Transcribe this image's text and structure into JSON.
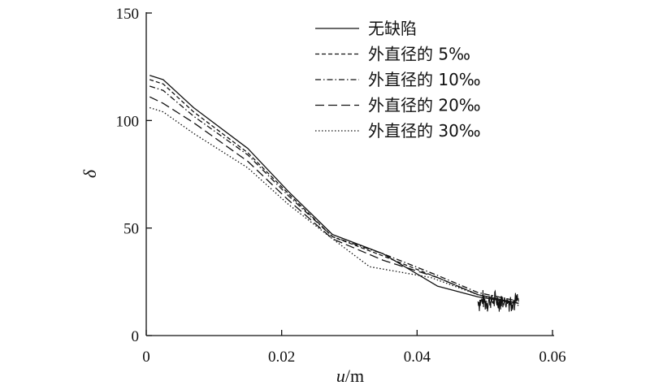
{
  "chart_data": {
    "type": "line",
    "title": "",
    "xlabel_italic": "u",
    "xlabel_unit": "/m",
    "ylabel": "δ",
    "xlim": [
      0,
      0.06
    ],
    "ylim": [
      0,
      150
    ],
    "xticks": [
      0,
      0.02,
      0.04,
      0.06
    ],
    "xtick_labels": [
      "0",
      "0.02",
      "0.04",
      "0.06"
    ],
    "yticks": [
      0,
      50,
      100,
      150
    ],
    "ytick_labels": [
      "0",
      "50",
      "100",
      "150"
    ],
    "grid": false,
    "legend_position": "top-right",
    "series": [
      {
        "name": "无缺陷",
        "dash": "solid",
        "x": [
          0.0005,
          0.0025,
          0.007,
          0.015,
          0.021,
          0.0275,
          0.035,
          0.043,
          0.049,
          0.055
        ],
        "y": [
          121,
          119,
          106,
          87,
          67,
          47,
          38,
          23,
          18,
          15
        ]
      },
      {
        "name": "外直径的 5‰",
        "dash": "dashed-fine",
        "x": [
          0.0005,
          0.0025,
          0.007,
          0.015,
          0.021,
          0.0275,
          0.035,
          0.043,
          0.049,
          0.055
        ],
        "y": [
          119,
          117,
          104,
          85,
          66,
          46,
          37,
          27,
          19,
          15
        ]
      },
      {
        "name": "外直径的 10‰",
        "dash": "dash-dot",
        "x": [
          0.0005,
          0.0025,
          0.007,
          0.015,
          0.021,
          0.0275,
          0.035,
          0.043,
          0.049,
          0.055
        ],
        "y": [
          116,
          114,
          102,
          84,
          65,
          46,
          38,
          28,
          20,
          16
        ]
      },
      {
        "name": "外直径的 20‰",
        "dash": "dashed",
        "x": [
          0.0005,
          0.0025,
          0.007,
          0.015,
          0.021,
          0.0275,
          0.035,
          0.043,
          0.049,
          0.055
        ],
        "y": [
          111,
          108,
          99,
          81,
          63,
          45,
          35,
          27,
          19,
          15
        ]
      },
      {
        "name": "外直径的 30‰",
        "dash": "dotted",
        "x": [
          0.0005,
          0.0025,
          0.007,
          0.015,
          0.021,
          0.0275,
          0.033,
          0.042,
          0.049,
          0.055
        ],
        "y": [
          106,
          104,
          94,
          78,
          61,
          45,
          32,
          27,
          19,
          14
        ]
      }
    ],
    "noise_band": {
      "x_start": 0.049,
      "x_end": 0.055,
      "y_center": 16,
      "y_spread": 6
    }
  }
}
